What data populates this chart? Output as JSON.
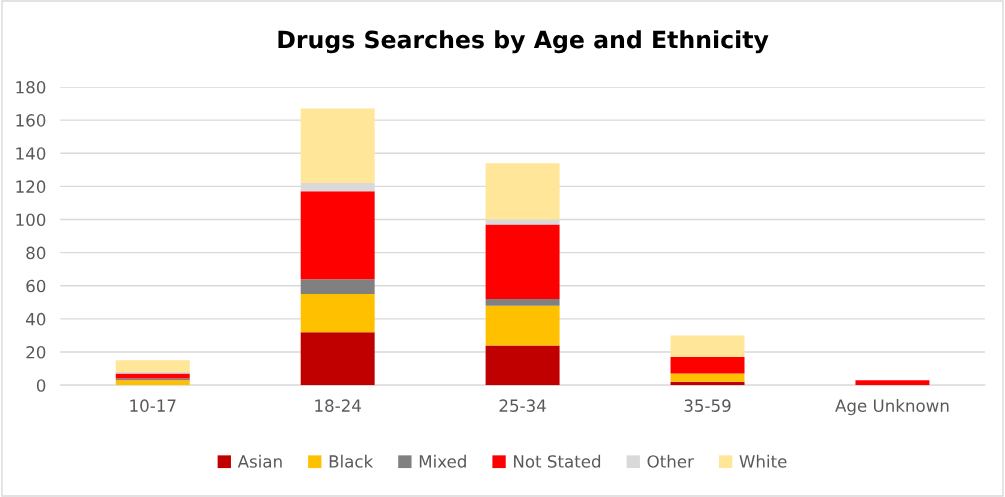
{
  "chart_data": {
    "type": "bar",
    "stacked": true,
    "title": "Drugs Searches by Age and Ethnicity",
    "categories": [
      "10-17",
      "18-24",
      "25-34",
      "35-59",
      "Age Unknown"
    ],
    "series": [
      {
        "name": "Asian",
        "color": "#c00000",
        "values": [
          0,
          32,
          24,
          2,
          0
        ]
      },
      {
        "name": "Black",
        "color": "#ffc000",
        "values": [
          3,
          23,
          24,
          5,
          0
        ]
      },
      {
        "name": "Mixed",
        "color": "#808080",
        "values": [
          1,
          9,
          4,
          0,
          0
        ]
      },
      {
        "name": "Not Stated",
        "color": "#ff0000",
        "values": [
          3,
          53,
          45,
          10,
          3
        ]
      },
      {
        "name": "Other",
        "color": "#d9d9d9",
        "values": [
          1,
          5,
          3,
          0,
          0
        ]
      },
      {
        "name": "White",
        "color": "#ffe699",
        "values": [
          7,
          45,
          34,
          13,
          0
        ]
      }
    ],
    "ylim": [
      0,
      180
    ],
    "yticks": [
      0,
      20,
      40,
      60,
      80,
      100,
      120,
      140,
      160,
      180
    ],
    "grid": "y",
    "legend": "bottom"
  }
}
